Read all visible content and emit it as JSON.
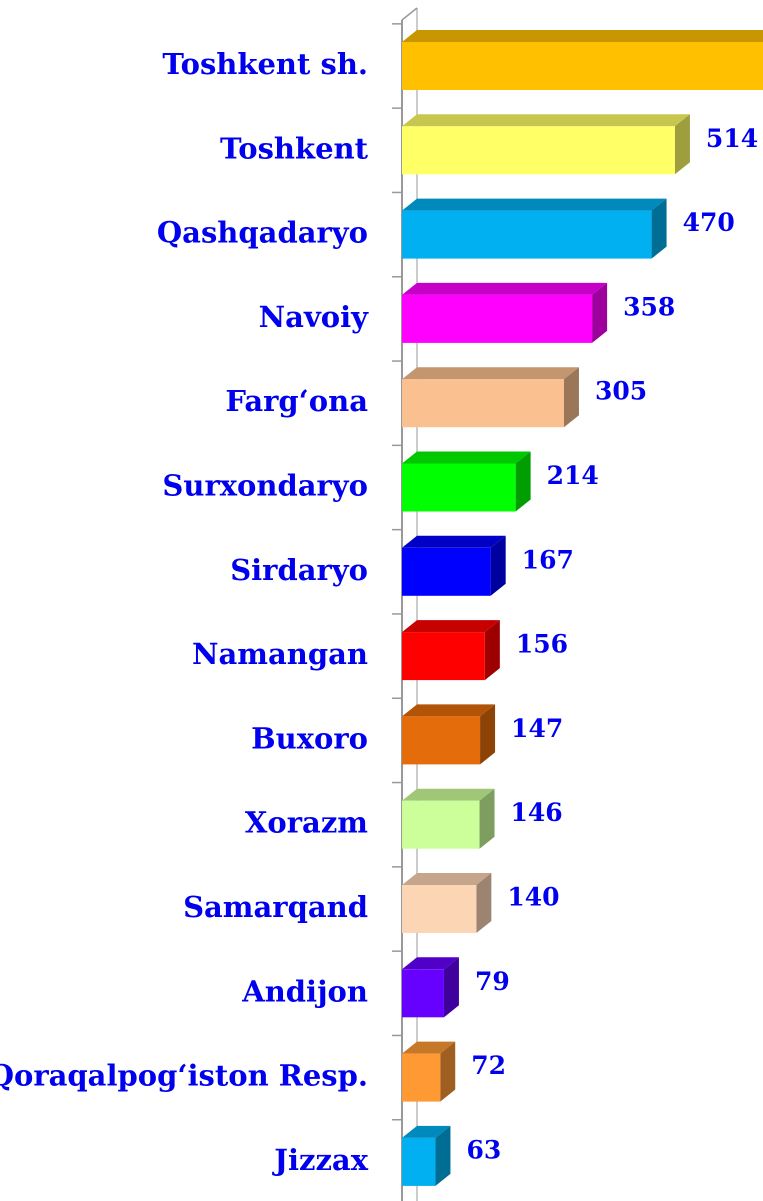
{
  "chart_data": {
    "type": "bar",
    "orientation": "horizontal",
    "categories": [
      "Toshkent sh.",
      "Toshkent",
      "Qashqadaryo",
      "Navoiy",
      "Farg‘ona",
      "Surxondaryo",
      "Sirdaryo",
      "Namangan",
      "Buxoro",
      "Xorazm",
      "Samarqand",
      "Andijon",
      "Qoraqalpog‘iston Resp.",
      "Jizzax"
    ],
    "values": [
      700,
      514,
      470,
      358,
      305,
      214,
      167,
      156,
      147,
      146,
      140,
      79,
      72,
      63
    ],
    "colors": [
      "#ffc000",
      "#ffff66",
      "#00b0f0",
      "#ff00ff",
      "#fac090",
      "#00ff00",
      "#0000ff",
      "#ff0000",
      "#e46c0a",
      "#ccff99",
      "#fcd5b5",
      "#6600ff",
      "#ff9933",
      "#00b0f0"
    ]
  }
}
